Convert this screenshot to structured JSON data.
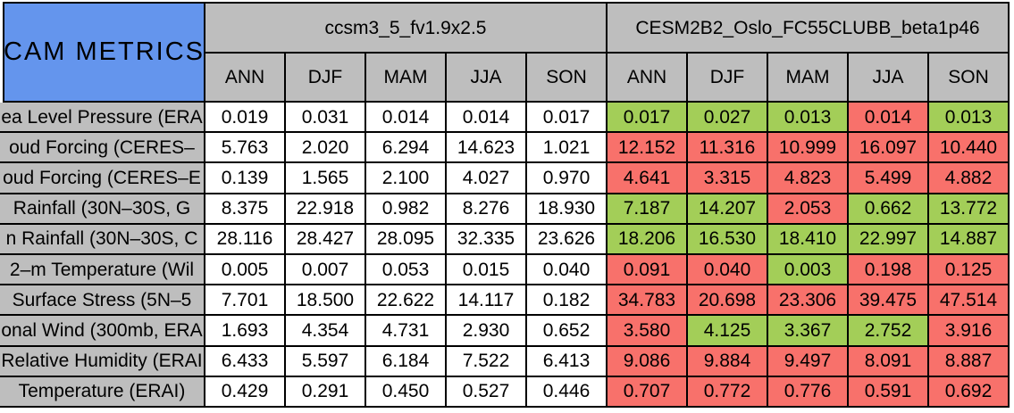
{
  "title": "CAM METRICS",
  "colors": {
    "blue": "#6495ED",
    "gray": "#BEBEBE",
    "green": "#A3CE58",
    "red": "#F8716B"
  },
  "chart_data": {
    "type": "table",
    "title": "CAM METRICS",
    "column_groups": [
      "ccsm3_5_fv1.9x2.5",
      "CESM2B2_Oslo_FC55CLUBB_beta1p46"
    ],
    "seasons": [
      "ANN",
      "DJF",
      "MAM",
      "JJA",
      "SON"
    ],
    "cell_color_meaning": {
      "green": "better",
      "red": "worse"
    },
    "rows": [
      {
        "label": "ea Level Pressure (ERA",
        "baseline": [
          "0.019",
          "0.031",
          "0.014",
          "0.014",
          "0.017"
        ],
        "test": [
          {
            "value": "0.017",
            "status": "better"
          },
          {
            "value": "0.027",
            "status": "better"
          },
          {
            "value": "0.013",
            "status": "better"
          },
          {
            "value": "0.014",
            "status": "worse"
          },
          {
            "value": "0.013",
            "status": "better"
          }
        ]
      },
      {
        "label": "oud Forcing (CERES–",
        "baseline": [
          "5.763",
          "2.020",
          "6.294",
          "14.623",
          "1.021"
        ],
        "test": [
          {
            "value": "12.152",
            "status": "worse"
          },
          {
            "value": "11.316",
            "status": "worse"
          },
          {
            "value": "10.999",
            "status": "worse"
          },
          {
            "value": "16.097",
            "status": "worse"
          },
          {
            "value": "10.440",
            "status": "worse"
          }
        ]
      },
      {
        "label": "oud Forcing (CERES–E",
        "baseline": [
          "0.139",
          "1.565",
          "2.100",
          "4.027",
          "0.970"
        ],
        "test": [
          {
            "value": "4.641",
            "status": "worse"
          },
          {
            "value": "3.315",
            "status": "worse"
          },
          {
            "value": "4.823",
            "status": "worse"
          },
          {
            "value": "5.499",
            "status": "worse"
          },
          {
            "value": "4.882",
            "status": "worse"
          }
        ]
      },
      {
        "label": "Rainfall (30N–30S, G",
        "baseline": [
          "8.375",
          "22.918",
          "0.982",
          "8.276",
          "18.930"
        ],
        "test": [
          {
            "value": "7.187",
            "status": "better"
          },
          {
            "value": "14.207",
            "status": "better"
          },
          {
            "value": "2.053",
            "status": "worse"
          },
          {
            "value": "0.662",
            "status": "better"
          },
          {
            "value": "13.772",
            "status": "better"
          }
        ]
      },
      {
        "label": "n Rainfall (30N–30S, C",
        "baseline": [
          "28.116",
          "28.427",
          "28.095",
          "32.335",
          "23.626"
        ],
        "test": [
          {
            "value": "18.206",
            "status": "better"
          },
          {
            "value": "16.530",
            "status": "better"
          },
          {
            "value": "18.410",
            "status": "better"
          },
          {
            "value": "22.997",
            "status": "better"
          },
          {
            "value": "14.887",
            "status": "better"
          }
        ]
      },
      {
        "label": "2–m Temperature (Wil",
        "baseline": [
          "0.005",
          "0.007",
          "0.053",
          "0.015",
          "0.040"
        ],
        "test": [
          {
            "value": "0.091",
            "status": "worse"
          },
          {
            "value": "0.040",
            "status": "worse"
          },
          {
            "value": "0.003",
            "status": "better"
          },
          {
            "value": "0.198",
            "status": "worse"
          },
          {
            "value": "0.125",
            "status": "worse"
          }
        ]
      },
      {
        "label": "Surface Stress (5N–5",
        "baseline": [
          "7.701",
          "18.500",
          "22.622",
          "14.117",
          "0.182"
        ],
        "test": [
          {
            "value": "34.783",
            "status": "worse"
          },
          {
            "value": "20.698",
            "status": "worse"
          },
          {
            "value": "23.306",
            "status": "worse"
          },
          {
            "value": "39.475",
            "status": "worse"
          },
          {
            "value": "47.514",
            "status": "worse"
          }
        ]
      },
      {
        "label": "onal Wind (300mb, ERA",
        "baseline": [
          "1.693",
          "4.354",
          "4.731",
          "2.930",
          "0.652"
        ],
        "test": [
          {
            "value": "3.580",
            "status": "worse"
          },
          {
            "value": "4.125",
            "status": "better"
          },
          {
            "value": "3.367",
            "status": "better"
          },
          {
            "value": "2.752",
            "status": "better"
          },
          {
            "value": "3.916",
            "status": "worse"
          }
        ]
      },
      {
        "label": "Relative Humidity (ERAI",
        "baseline": [
          "6.433",
          "5.597",
          "6.184",
          "7.522",
          "6.413"
        ],
        "test": [
          {
            "value": "9.086",
            "status": "worse"
          },
          {
            "value": "9.884",
            "status": "worse"
          },
          {
            "value": "9.497",
            "status": "worse"
          },
          {
            "value": "8.091",
            "status": "worse"
          },
          {
            "value": "8.887",
            "status": "worse"
          }
        ]
      },
      {
        "label": "Temperature (ERAI)",
        "baseline": [
          "0.429",
          "0.291",
          "0.450",
          "0.527",
          "0.446"
        ],
        "test": [
          {
            "value": "0.707",
            "status": "worse"
          },
          {
            "value": "0.772",
            "status": "worse"
          },
          {
            "value": "0.776",
            "status": "worse"
          },
          {
            "value": "0.591",
            "status": "worse"
          },
          {
            "value": "0.692",
            "status": "worse"
          }
        ]
      }
    ]
  }
}
